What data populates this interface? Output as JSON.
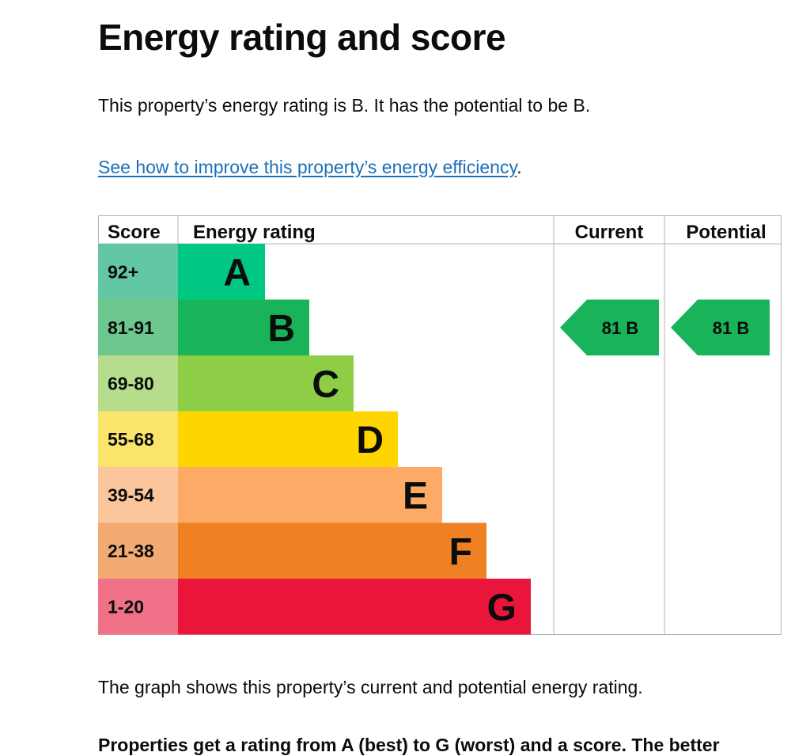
{
  "heading": "Energy rating and score",
  "summary": "This property’s energy rating is B. It has the potential to be B.",
  "improve_link": "See how to improve this property’s energy efficiency",
  "improve_link_suffix": ".",
  "caption": "The graph shows this property’s current and potential energy rating.",
  "partial_line": "Properties get a rating from A (best) to G (worst) and a score. The better",
  "chart_data": {
    "type": "bar",
    "headers": {
      "score": "Score",
      "rating": "Energy rating",
      "current": "Current",
      "potential": "Potential"
    },
    "bands": [
      {
        "letter": "A",
        "range": "92+",
        "color": "#00c781",
        "score_color": "#64c7a3"
      },
      {
        "letter": "B",
        "range": "81-91",
        "color": "#19b459",
        "score_color": "#6cc88e"
      },
      {
        "letter": "C",
        "range": "69-80",
        "color": "#8dce46",
        "score_color": "#b5dd8c"
      },
      {
        "letter": "D",
        "range": "55-68",
        "color": "#ffd500",
        "score_color": "#fbe46c"
      },
      {
        "letter": "E",
        "range": "39-54",
        "color": "#fcaa65",
        "score_color": "#fcc69c"
      },
      {
        "letter": "F",
        "range": "21-38",
        "color": "#ef8023",
        "score_color": "#f3aa73"
      },
      {
        "letter": "G",
        "range": "1-20",
        "color": "#e9153b",
        "score_color": "#f07188"
      }
    ],
    "current": {
      "score": 81,
      "rating": "B"
    },
    "potential": {
      "score": 81,
      "rating": "B"
    }
  }
}
